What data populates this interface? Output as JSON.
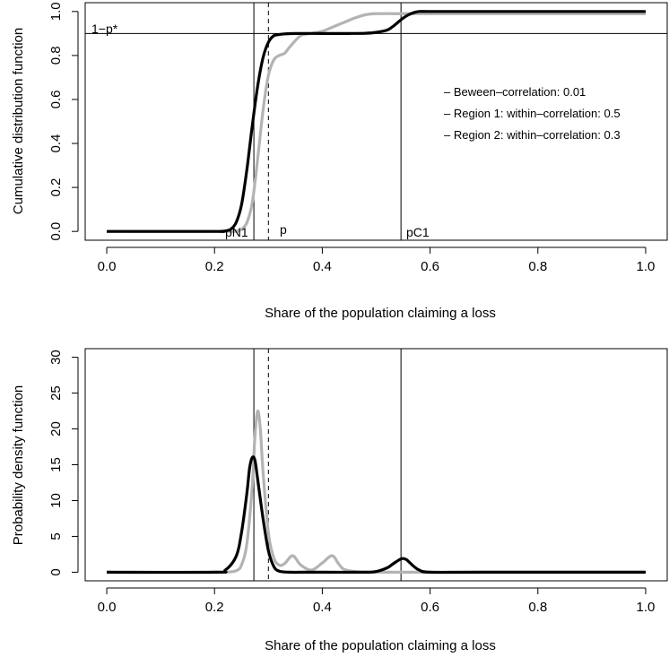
{
  "chart_data": [
    {
      "type": "line",
      "title": "",
      "xlabel": "Share of the population claiming a loss",
      "ylabel": "Cumulative distribution function",
      "xlim": [
        -0.04,
        1.04
      ],
      "ylim": [
        -0.04,
        1.04
      ],
      "x_ticks": [
        0.0,
        0.2,
        0.4,
        0.6,
        0.8,
        1.0
      ],
      "x_tick_labels": [
        "0.0",
        "0.2",
        "0.4",
        "0.6",
        "0.8",
        "1.0"
      ],
      "y_ticks": [
        0.0,
        0.2,
        0.4,
        0.6,
        0.8,
        1.0
      ],
      "y_tick_labels": [
        "0.0",
        "0.2",
        "0.4",
        "0.6",
        "0.8",
        "1.0"
      ],
      "grid": false,
      "legend_position": "right",
      "legend": [
        "– Beween–correlation: 0.01",
        "– Region 1: within–correlation: 0.5",
        "– Region 2: within–correlation: 0.3"
      ],
      "reference_lines": [
        {
          "orientation": "vertical",
          "x": 0.273,
          "style": "solid",
          "label": "pN1"
        },
        {
          "orientation": "vertical",
          "x": 0.3,
          "style": "dashed",
          "label": "p"
        },
        {
          "orientation": "vertical",
          "x": 0.546,
          "style": "solid",
          "label": "pC1"
        },
        {
          "orientation": "horizontal",
          "y": 0.9,
          "style": "solid",
          "label": "1−p*"
        }
      ],
      "series": [
        {
          "color": "#000000",
          "x": [
            0.0,
            0.2,
            0.21,
            0.22,
            0.23,
            0.24,
            0.25,
            0.26,
            0.27,
            0.28,
            0.29,
            0.3,
            0.31,
            0.32,
            0.33,
            0.35,
            0.4,
            0.45,
            0.48,
            0.5,
            0.52,
            0.53,
            0.54,
            0.55,
            0.56,
            0.57,
            0.58,
            0.6,
            0.7,
            0.8,
            0.9,
            1.0
          ],
          "y": [
            0.0,
            0.0,
            0.0,
            0.002,
            0.01,
            0.04,
            0.12,
            0.28,
            0.48,
            0.66,
            0.79,
            0.86,
            0.89,
            0.895,
            0.898,
            0.9,
            0.9,
            0.9,
            0.901,
            0.905,
            0.915,
            0.93,
            0.95,
            0.97,
            0.985,
            0.995,
            1.0,
            1.0,
            1.0,
            1.0,
            1.0,
            1.0
          ]
        },
        {
          "color": "#b3b3b3",
          "x": [
            0.0,
            0.22,
            0.24,
            0.25,
            0.26,
            0.27,
            0.28,
            0.29,
            0.3,
            0.31,
            0.32,
            0.33,
            0.34,
            0.36,
            0.38,
            0.4,
            0.42,
            0.44,
            0.46,
            0.48,
            0.5,
            0.55,
            0.6,
            0.7,
            0.8,
            0.9,
            1.0
          ],
          "y": [
            0.0,
            0.0,
            0.002,
            0.01,
            0.04,
            0.13,
            0.33,
            0.55,
            0.71,
            0.78,
            0.8,
            0.81,
            0.84,
            0.89,
            0.9,
            0.91,
            0.93,
            0.95,
            0.97,
            0.985,
            0.99,
            0.99,
            0.99,
            0.99,
            0.99,
            0.99,
            0.99
          ]
        }
      ]
    },
    {
      "type": "line",
      "title": "",
      "xlabel": "Share of the population claiming a loss",
      "ylabel": "Probability density function",
      "xlim": [
        -0.04,
        1.04
      ],
      "ylim": [
        -1.2,
        31.2
      ],
      "x_ticks": [
        0.0,
        0.2,
        0.4,
        0.6,
        0.8,
        1.0
      ],
      "x_tick_labels": [
        "0.0",
        "0.2",
        "0.4",
        "0.6",
        "0.8",
        "1.0"
      ],
      "y_ticks": [
        0,
        5,
        10,
        15,
        20,
        25,
        30
      ],
      "y_tick_labels": [
        "0",
        "5",
        "10",
        "15",
        "20",
        "25",
        "30"
      ],
      "grid": false,
      "reference_lines": [
        {
          "orientation": "vertical",
          "x": 0.273,
          "style": "solid"
        },
        {
          "orientation": "vertical",
          "x": 0.3,
          "style": "dashed"
        },
        {
          "orientation": "vertical",
          "x": 0.546,
          "style": "solid"
        }
      ],
      "series": [
        {
          "color": "#000000",
          "x": [
            0.0,
            0.2,
            0.22,
            0.24,
            0.25,
            0.26,
            0.265,
            0.27,
            0.275,
            0.28,
            0.29,
            0.3,
            0.31,
            0.32,
            0.34,
            0.36,
            0.4,
            0.48,
            0.5,
            0.52,
            0.53,
            0.54,
            0.548,
            0.555,
            0.56,
            0.57,
            0.58,
            0.6,
            0.7,
            1.0
          ],
          "y": [
            0.0,
            0.0,
            0.3,
            2.2,
            5.5,
            11.0,
            14.5,
            16.0,
            15.6,
            13.0,
            7.5,
            3.0,
            0.8,
            0.15,
            0.0,
            0.0,
            0.0,
            0.0,
            0.1,
            0.6,
            1.1,
            1.6,
            1.9,
            1.8,
            1.5,
            0.8,
            0.3,
            0.0,
            0.0,
            0.0
          ]
        },
        {
          "color": "#b3b3b3",
          "x": [
            0.0,
            0.2,
            0.22,
            0.24,
            0.25,
            0.26,
            0.27,
            0.275,
            0.28,
            0.285,
            0.29,
            0.3,
            0.31,
            0.32,
            0.33,
            0.345,
            0.36,
            0.38,
            0.4,
            0.418,
            0.43,
            0.44,
            0.46,
            0.48,
            0.5,
            0.55,
            0.6,
            1.0
          ],
          "y": [
            0.0,
            0.0,
            0.0,
            0.2,
            1.0,
            4.0,
            12.0,
            19.0,
            22.5,
            20.0,
            14.0,
            5.5,
            2.0,
            1.0,
            1.2,
            2.3,
            1.0,
            0.3,
            1.3,
            2.3,
            1.2,
            0.4,
            0.1,
            0.0,
            0.0,
            0.0,
            0.0,
            0.0
          ]
        }
      ]
    }
  ]
}
